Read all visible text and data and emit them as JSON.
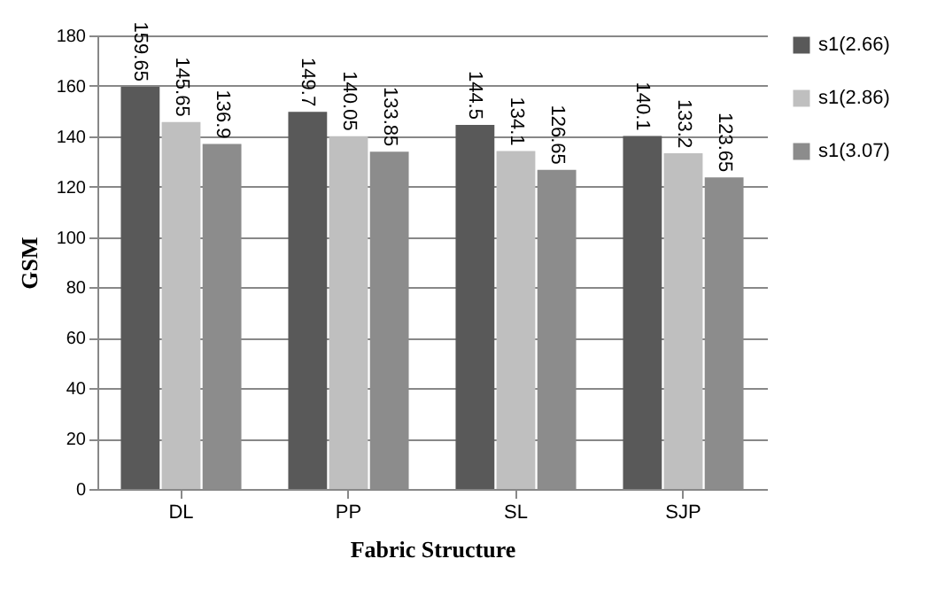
{
  "chart_data": {
    "type": "bar",
    "xlabel": "Fabric Structure",
    "ylabel": "GSM",
    "categories": [
      "DL",
      "PP",
      "SL",
      "SJP"
    ],
    "series": [
      {
        "name": "s1(2.66)",
        "color": "#595959",
        "values": [
          159.65,
          149.7,
          144.5,
          140.1
        ]
      },
      {
        "name": "s1(2.86)",
        "color": "#bfbfbf",
        "values": [
          145.65,
          140.05,
          134.1,
          133.2
        ]
      },
      {
        "name": "s1(3.07)",
        "color": "#8c8c8c",
        "values": [
          136.9,
          133.85,
          126.65,
          123.65
        ]
      }
    ],
    "ylim": [
      0,
      180
    ],
    "yticks": [
      0,
      20,
      40,
      60,
      80,
      100,
      120,
      140,
      160,
      180
    ],
    "grid": "y",
    "legend": "right",
    "data_labels": true
  }
}
